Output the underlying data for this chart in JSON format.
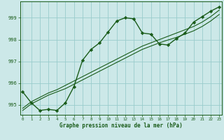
{
  "xlabel": "Graphe pression niveau de la mer (hPa)",
  "bg_color": "#cce8e8",
  "grid_color": "#99cccc",
  "line_color": "#1a5c1a",
  "xlim": [
    -0.3,
    23.3
  ],
  "ylim": [
    994.55,
    999.75
  ],
  "yticks": [
    995,
    996,
    997,
    998,
    999
  ],
  "xticks": [
    0,
    1,
    2,
    3,
    4,
    5,
    6,
    7,
    8,
    9,
    10,
    11,
    12,
    13,
    14,
    15,
    16,
    17,
    18,
    19,
    20,
    21,
    22,
    23
  ],
  "hours": [
    0,
    1,
    2,
    3,
    4,
    5,
    6,
    7,
    8,
    9,
    10,
    11,
    12,
    13,
    14,
    15,
    16,
    17,
    18,
    19,
    20,
    21,
    22,
    23
  ],
  "pressure_main": [
    995.6,
    995.1,
    994.75,
    994.8,
    994.75,
    995.1,
    995.85,
    997.05,
    997.55,
    997.85,
    998.35,
    998.85,
    999.0,
    998.95,
    998.3,
    998.25,
    997.8,
    997.75,
    998.05,
    998.3,
    998.8,
    999.05,
    999.3,
    999.5
  ],
  "pressure_trend1": [
    994.75,
    995.05,
    995.25,
    995.45,
    995.6,
    995.75,
    995.95,
    996.15,
    996.35,
    996.55,
    996.75,
    996.95,
    997.15,
    997.35,
    997.55,
    997.7,
    997.85,
    997.98,
    998.1,
    998.25,
    998.4,
    998.6,
    998.85,
    999.15
  ],
  "pressure_trend2": [
    994.85,
    995.15,
    995.35,
    995.55,
    995.7,
    995.9,
    996.1,
    996.3,
    996.5,
    996.7,
    996.9,
    997.1,
    997.3,
    997.5,
    997.7,
    997.85,
    998.0,
    998.15,
    998.3,
    998.45,
    998.6,
    998.8,
    999.05,
    999.35
  ]
}
